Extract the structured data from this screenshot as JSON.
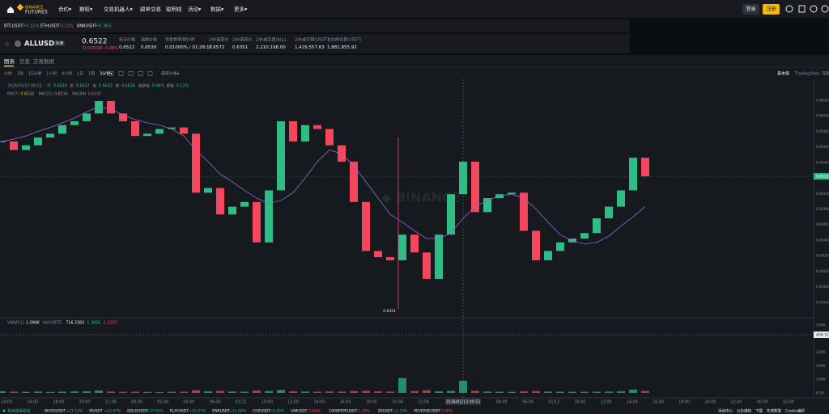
{
  "nav": {
    "logo": [
      "BINANCE",
      "FUTURES"
    ],
    "items": [
      "合约▾",
      "期权▾",
      "交易机器人▾",
      "跟单交易",
      "聪明钱",
      "活动▾",
      "数据▾",
      "更多▾"
    ],
    "login": "登录",
    "register": "注册"
  },
  "tickers": [
    {
      "symbol": "BTCUSDT",
      "change": "+0.11%"
    },
    {
      "symbol": "ETHUSDT",
      "change": "-0.12%"
    },
    {
      "symbol": "BNBUSDT",
      "change": "+0.36%"
    }
  ],
  "symbol": {
    "name": "ALLUSDT",
    "tag": "永续",
    "price": "0.6522",
    "change": "-0.003199 -0.48%"
  },
  "stats": [
    {
      "label": "标记价格",
      "value": "0.6522"
    },
    {
      "label": "指数价格",
      "value": "0.6530"
    },
    {
      "label": "资金费率/倒计时",
      "value": "0.01000% / 01:28:17"
    },
    {
      "label": "24h最高价",
      "value": "0.6572"
    },
    {
      "label": "24h最低价",
      "value": "0.6351"
    },
    {
      "label": "24h成交量(ALL)",
      "value": "2,210,198.00"
    },
    {
      "label": "24h成交额(USDT)",
      "value": "1,429,557.63"
    },
    {
      "label": "合约持仓量(USDT)",
      "value": "1,881,855.92"
    }
  ],
  "tabs": [
    "图表",
    "信息",
    "交易数据"
  ],
  "toolbar": {
    "intervals": [
      "分时",
      "1秒",
      "15分钟",
      "1小时",
      "4小时",
      "1日",
      "1周",
      "3分钟▾"
    ],
    "price_type": "最新价格▾",
    "views": [
      "基本版",
      "TradingView",
      "深度"
    ]
  },
  "chart": {
    "info": [
      "2026/01/13 00:51",
      "开",
      "0.6634",
      "高",
      "0.6637",
      "低",
      "0.6633",
      "收",
      "0.6636",
      "涨跌幅",
      "0.06%",
      "振幅",
      "0.12%"
    ],
    "ma_info": [
      {
        "label": "MA(7)",
        "value": "0.6532",
        "color": "#f0b90b"
      },
      {
        "label": "MA(25)",
        "value": "0.6516",
        "color": "#e377c2"
      },
      {
        "label": "MA(99)",
        "value": "0.6495",
        "color": "#9467bd"
      }
    ],
    "vol_info": [
      "VWAP(1)",
      "1.096K",
      "Vol(USDT)",
      "716.3360",
      "1.3856",
      "2.3250"
    ],
    "ylim": [
      0.6341,
      0.6645
    ],
    "yticks": [
      {
        "value": 0.662,
        "label": "0.6620"
      },
      {
        "value": 0.66,
        "label": "0.6600"
      },
      {
        "value": 0.658,
        "label": "0.6580"
      },
      {
        "value": 0.656,
        "label": "0.6560"
      },
      {
        "value": 0.654,
        "label": "0.6540"
      },
      {
        "value": 0.652,
        "label": "0.6520"
      },
      {
        "value": 0.65,
        "label": "0.6500"
      },
      {
        "value": 0.648,
        "label": "0.6480"
      },
      {
        "value": 0.646,
        "label": "0.6460"
      },
      {
        "value": 0.644,
        "label": "0.6440"
      },
      {
        "value": 0.642,
        "label": "0.6420"
      },
      {
        "value": 0.64,
        "label": "0.6400"
      },
      {
        "value": 0.638,
        "label": "0.6380"
      },
      {
        "value": 0.636,
        "label": "0.6360"
      }
    ],
    "closes": {
      "up_color": "#2ebd85",
      "down_color": "#f6465d",
      "values": [
        0.6567,
        0.6556,
        0.6562,
        0.6572,
        0.6577,
        0.6588,
        0.6593,
        0.6603,
        0.6619,
        0.6603,
        0.6593,
        0.6574,
        0.6577,
        0.6583,
        0.6585,
        0.6577,
        0.6501,
        0.6507,
        0.6473,
        0.6483,
        0.6489,
        0.6437,
        0.6504,
        0.6593,
        0.6567,
        0.6588,
        0.6583,
        0.6562,
        0.6541,
        0.6489,
        0.6426,
        0.6418,
        0.6414,
        0.6447,
        0.6424,
        0.639,
        0.6447,
        0.6499,
        0.6541,
        0.6476,
        0.6494,
        0.6499,
        0.6501,
        0.6452,
        0.6414,
        0.6426,
        0.6437,
        0.6442,
        0.6449,
        0.6468,
        0.6483,
        0.6504,
        0.6546,
        0.6522
      ]
    },
    "ma99": {
      "color": "#8e6bd6",
      "values": [
        0.6567,
        0.657,
        0.6574,
        0.658,
        0.6585,
        0.6591,
        0.6597,
        0.6605,
        0.6612,
        0.6609,
        0.6601,
        0.6595,
        0.6591,
        0.6588,
        0.6583,
        0.6574,
        0.6556,
        0.6541,
        0.6525,
        0.6515,
        0.6504,
        0.6494,
        0.6487,
        0.6491,
        0.6501,
        0.652,
        0.6541,
        0.6556,
        0.6551,
        0.6536,
        0.6515,
        0.6494,
        0.6473,
        0.6463,
        0.6452,
        0.6442,
        0.6442,
        0.6449,
        0.6468,
        0.6483,
        0.6491,
        0.6497,
        0.6499,
        0.6494,
        0.648,
        0.6463,
        0.6447,
        0.6439,
        0.6435,
        0.6437,
        0.6445,
        0.6458,
        0.647,
        0.6483
      ]
    },
    "last_price": 0.6522,
    "low_marker": {
      "value": 0.6351,
      "label": "0.6351"
    },
    "volume": {
      "ylim": [
        -24000,
        542000
      ],
      "yticks": [
        {
          "value": 500000,
          "label": "500K"
        },
        {
          "value": 300000,
          "label": "300K"
        },
        {
          "value": 200000,
          "label": "200K"
        },
        {
          "value": 100000,
          "label": "100K"
        },
        {
          "value": 0,
          "label": "0.00"
        }
      ],
      "values": [
        12000,
        9000,
        8000,
        10000,
        7000,
        9000,
        11000,
        12000,
        18000,
        10000,
        8000,
        9000,
        7000,
        6000,
        8000,
        9000,
        20000,
        12000,
        15000,
        10000,
        9000,
        18000,
        14000,
        22000,
        12000,
        10000,
        9000,
        11000,
        10000,
        14000,
        16000,
        12000,
        10000,
        110000,
        14000,
        20000,
        12000,
        15000,
        90000,
        16000,
        10000,
        9000,
        8000,
        12000,
        14000,
        10000,
        9000,
        8000,
        8000,
        9000,
        10000,
        12000,
        25000,
        15000
      ]
    },
    "crosshair": {
      "time": "2026/01/13 00:51",
      "volume_label": "409.31"
    },
    "xlabels": [
      "14:00",
      "16:00",
      "18:00",
      "20:00",
      "22:00",
      "00:00",
      "02:00",
      "04:00",
      "06:00",
      "01/12",
      "10:00",
      "12:00",
      "14:00",
      "16:00",
      "18:00",
      "20:00",
      "22:00",
      null,
      null,
      "04:00",
      "06:00",
      "01/13",
      "10:00",
      "12:00",
      "14:00",
      "16:00",
      "18:00",
      "20:00",
      "22:00",
      "00:00",
      "02:00"
    ]
  },
  "footer": {
    "status": "系统连接稳定",
    "tickers": [
      {
        "symbol": "BIVOSUSDT",
        "change": "+21.12%"
      },
      {
        "symbol": "IPUSDT",
        "change": "+22.47%"
      },
      {
        "symbol": "DOLOUSDT",
        "change": "+57.85%"
      },
      {
        "symbol": "PLAYUSDT",
        "change": "+52.07%"
      },
      {
        "symbol": "ENBUSDT",
        "change": "+11.86%"
      },
      {
        "symbol": "CHZUSDT",
        "change": "+6.19%"
      },
      {
        "symbol": "UNIUSDT",
        "change": "-1.64%"
      },
      {
        "symbol": "1000PEPEUSDT",
        "change": "-1.15%"
      },
      {
        "symbol": "ZKUSDT",
        "change": "+2.73%"
      },
      {
        "symbol": "PEVERSEUSDT",
        "change": "-7.08%"
      }
    ],
    "links": [
      "活动中心",
      "公告通知",
      "下载",
      "在线客服",
      "Cookie偏好"
    ]
  }
}
